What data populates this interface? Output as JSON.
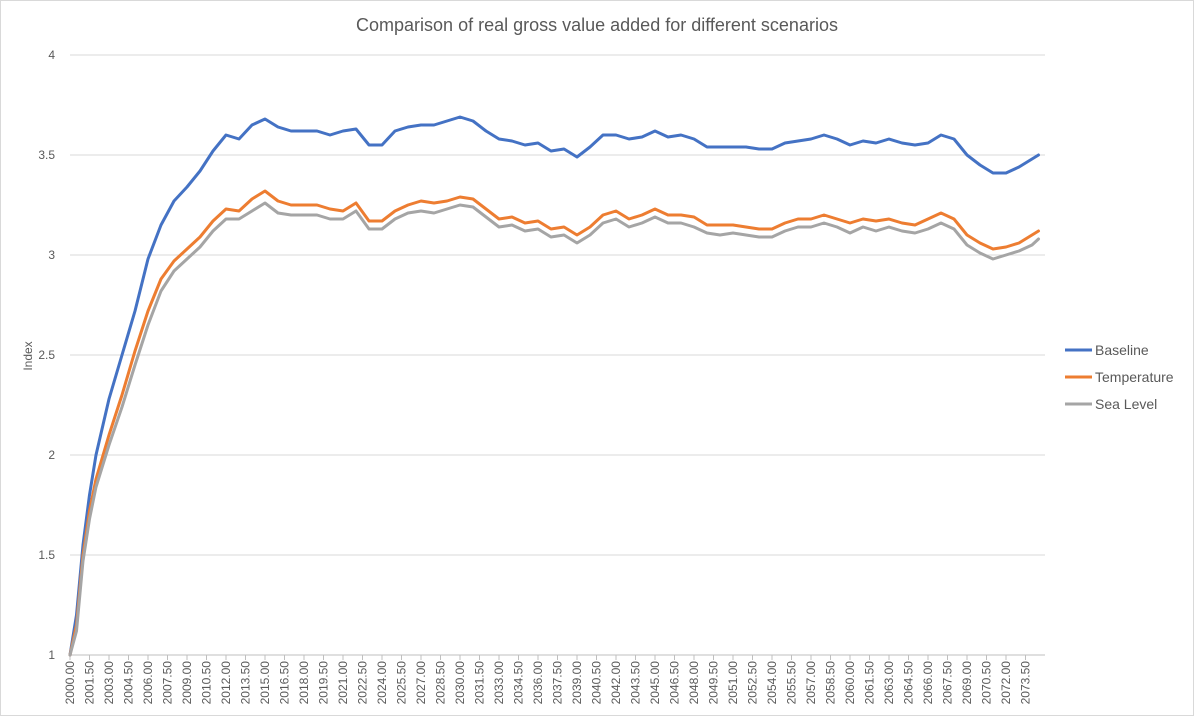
{
  "chart_data": {
    "type": "line",
    "title": "Comparison of real gross value added for different scenarios",
    "xlabel": "",
    "ylabel": "Index",
    "ylim": [
      1,
      4
    ],
    "yticks": [
      "1",
      "1.5",
      "2",
      "2.5",
      "3",
      "3.5",
      "4"
    ],
    "xlim": [
      2000.0,
      2075.0
    ],
    "xtick_step": 1.5,
    "grid": "horizontal",
    "legend_position": "right",
    "series": [
      {
        "name": "Baseline",
        "color": "#4472C4",
        "x": [
          2000.0,
          2000.5,
          2001.0,
          2001.5,
          2002.0,
          2003.0,
          2004.0,
          2005.0,
          2006.0,
          2007.0,
          2008.0,
          2009.0,
          2010.0,
          2011.0,
          2012.0,
          2013.0,
          2014.0,
          2015.0,
          2016.0,
          2017.0,
          2018.0,
          2019.0,
          2020.0,
          2021.0,
          2022.0,
          2023.0,
          2024.0,
          2025.0,
          2026.0,
          2027.0,
          2028.0,
          2029.0,
          2030.0,
          2031.0,
          2032.0,
          2033.0,
          2034.0,
          2035.0,
          2036.0,
          2037.0,
          2038.0,
          2039.0,
          2040.0,
          2041.0,
          2042.0,
          2043.0,
          2044.0,
          2045.0,
          2046.0,
          2047.0,
          2048.0,
          2049.0,
          2050.0,
          2051.0,
          2052.0,
          2053.0,
          2054.0,
          2055.0,
          2056.0,
          2057.0,
          2058.0,
          2059.0,
          2060.0,
          2061.0,
          2062.0,
          2063.0,
          2064.0,
          2065.0,
          2066.0,
          2067.0,
          2068.0,
          2069.0,
          2070.0,
          2071.0,
          2072.0,
          2073.0,
          2074.0,
          2074.5
        ],
        "values": [
          1.0,
          1.2,
          1.55,
          1.8,
          2.0,
          2.28,
          2.5,
          2.72,
          2.98,
          3.15,
          3.27,
          3.34,
          3.42,
          3.52,
          3.6,
          3.58,
          3.65,
          3.68,
          3.64,
          3.62,
          3.62,
          3.62,
          3.6,
          3.62,
          3.63,
          3.55,
          3.55,
          3.62,
          3.64,
          3.65,
          3.65,
          3.67,
          3.69,
          3.67,
          3.62,
          3.58,
          3.57,
          3.55,
          3.56,
          3.52,
          3.53,
          3.49,
          3.54,
          3.6,
          3.6,
          3.58,
          3.59,
          3.62,
          3.59,
          3.6,
          3.58,
          3.54,
          3.54,
          3.54,
          3.54,
          3.53,
          3.53,
          3.56,
          3.57,
          3.58,
          3.6,
          3.58,
          3.55,
          3.57,
          3.56,
          3.58,
          3.56,
          3.55,
          3.56,
          3.6,
          3.58,
          3.5,
          3.45,
          3.41,
          3.41,
          3.44,
          3.48,
          3.5
        ]
      },
      {
        "name": "Temperature",
        "color": "#ED7D31",
        "x": [
          2000.0,
          2000.5,
          2001.0,
          2001.5,
          2002.0,
          2003.0,
          2004.0,
          2005.0,
          2006.0,
          2007.0,
          2008.0,
          2009.0,
          2010.0,
          2011.0,
          2012.0,
          2013.0,
          2014.0,
          2015.0,
          2016.0,
          2017.0,
          2018.0,
          2019.0,
          2020.0,
          2021.0,
          2022.0,
          2023.0,
          2024.0,
          2025.0,
          2026.0,
          2027.0,
          2028.0,
          2029.0,
          2030.0,
          2031.0,
          2032.0,
          2033.0,
          2034.0,
          2035.0,
          2036.0,
          2037.0,
          2038.0,
          2039.0,
          2040.0,
          2041.0,
          2042.0,
          2043.0,
          2044.0,
          2045.0,
          2046.0,
          2047.0,
          2048.0,
          2049.0,
          2050.0,
          2051.0,
          2052.0,
          2053.0,
          2054.0,
          2055.0,
          2056.0,
          2057.0,
          2058.0,
          2059.0,
          2060.0,
          2061.0,
          2062.0,
          2063.0,
          2064.0,
          2065.0,
          2066.0,
          2067.0,
          2068.0,
          2069.0,
          2070.0,
          2071.0,
          2072.0,
          2073.0,
          2074.0,
          2074.5
        ],
        "values": [
          1.0,
          1.15,
          1.5,
          1.72,
          1.88,
          2.1,
          2.3,
          2.52,
          2.72,
          2.88,
          2.97,
          3.03,
          3.09,
          3.17,
          3.23,
          3.22,
          3.28,
          3.32,
          3.27,
          3.25,
          3.25,
          3.25,
          3.23,
          3.22,
          3.26,
          3.17,
          3.17,
          3.22,
          3.25,
          3.27,
          3.26,
          3.27,
          3.29,
          3.28,
          3.23,
          3.18,
          3.19,
          3.16,
          3.17,
          3.13,
          3.14,
          3.1,
          3.14,
          3.2,
          3.22,
          3.18,
          3.2,
          3.23,
          3.2,
          3.2,
          3.19,
          3.15,
          3.15,
          3.15,
          3.14,
          3.13,
          3.13,
          3.16,
          3.18,
          3.18,
          3.2,
          3.18,
          3.16,
          3.18,
          3.17,
          3.18,
          3.16,
          3.15,
          3.18,
          3.21,
          3.18,
          3.1,
          3.06,
          3.03,
          3.04,
          3.06,
          3.1,
          3.12
        ]
      },
      {
        "name": "Sea Level",
        "color": "#A5A5A5",
        "x": [
          2000.0,
          2000.5,
          2001.0,
          2001.5,
          2002.0,
          2003.0,
          2004.0,
          2005.0,
          2006.0,
          2007.0,
          2008.0,
          2009.0,
          2010.0,
          2011.0,
          2012.0,
          2013.0,
          2014.0,
          2015.0,
          2016.0,
          2017.0,
          2018.0,
          2019.0,
          2020.0,
          2021.0,
          2022.0,
          2023.0,
          2024.0,
          2025.0,
          2026.0,
          2027.0,
          2028.0,
          2029.0,
          2030.0,
          2031.0,
          2032.0,
          2033.0,
          2034.0,
          2035.0,
          2036.0,
          2037.0,
          2038.0,
          2039.0,
          2040.0,
          2041.0,
          2042.0,
          2043.0,
          2044.0,
          2045.0,
          2046.0,
          2047.0,
          2048.0,
          2049.0,
          2050.0,
          2051.0,
          2052.0,
          2053.0,
          2054.0,
          2055.0,
          2056.0,
          2057.0,
          2058.0,
          2059.0,
          2060.0,
          2061.0,
          2062.0,
          2063.0,
          2064.0,
          2065.0,
          2066.0,
          2067.0,
          2068.0,
          2069.0,
          2070.0,
          2071.0,
          2072.0,
          2073.0,
          2074.0,
          2074.5
        ],
        "values": [
          1.0,
          1.12,
          1.47,
          1.68,
          1.84,
          2.05,
          2.24,
          2.45,
          2.65,
          2.82,
          2.92,
          2.98,
          3.04,
          3.12,
          3.18,
          3.18,
          3.22,
          3.26,
          3.21,
          3.2,
          3.2,
          3.2,
          3.18,
          3.18,
          3.22,
          3.13,
          3.13,
          3.18,
          3.21,
          3.22,
          3.21,
          3.23,
          3.25,
          3.24,
          3.19,
          3.14,
          3.15,
          3.12,
          3.13,
          3.09,
          3.1,
          3.06,
          3.1,
          3.16,
          3.18,
          3.14,
          3.16,
          3.19,
          3.16,
          3.16,
          3.14,
          3.11,
          3.1,
          3.11,
          3.1,
          3.09,
          3.09,
          3.12,
          3.14,
          3.14,
          3.16,
          3.14,
          3.11,
          3.14,
          3.12,
          3.14,
          3.12,
          3.11,
          3.13,
          3.16,
          3.13,
          3.05,
          3.01,
          2.98,
          3.0,
          3.02,
          3.05,
          3.08
        ]
      }
    ]
  }
}
